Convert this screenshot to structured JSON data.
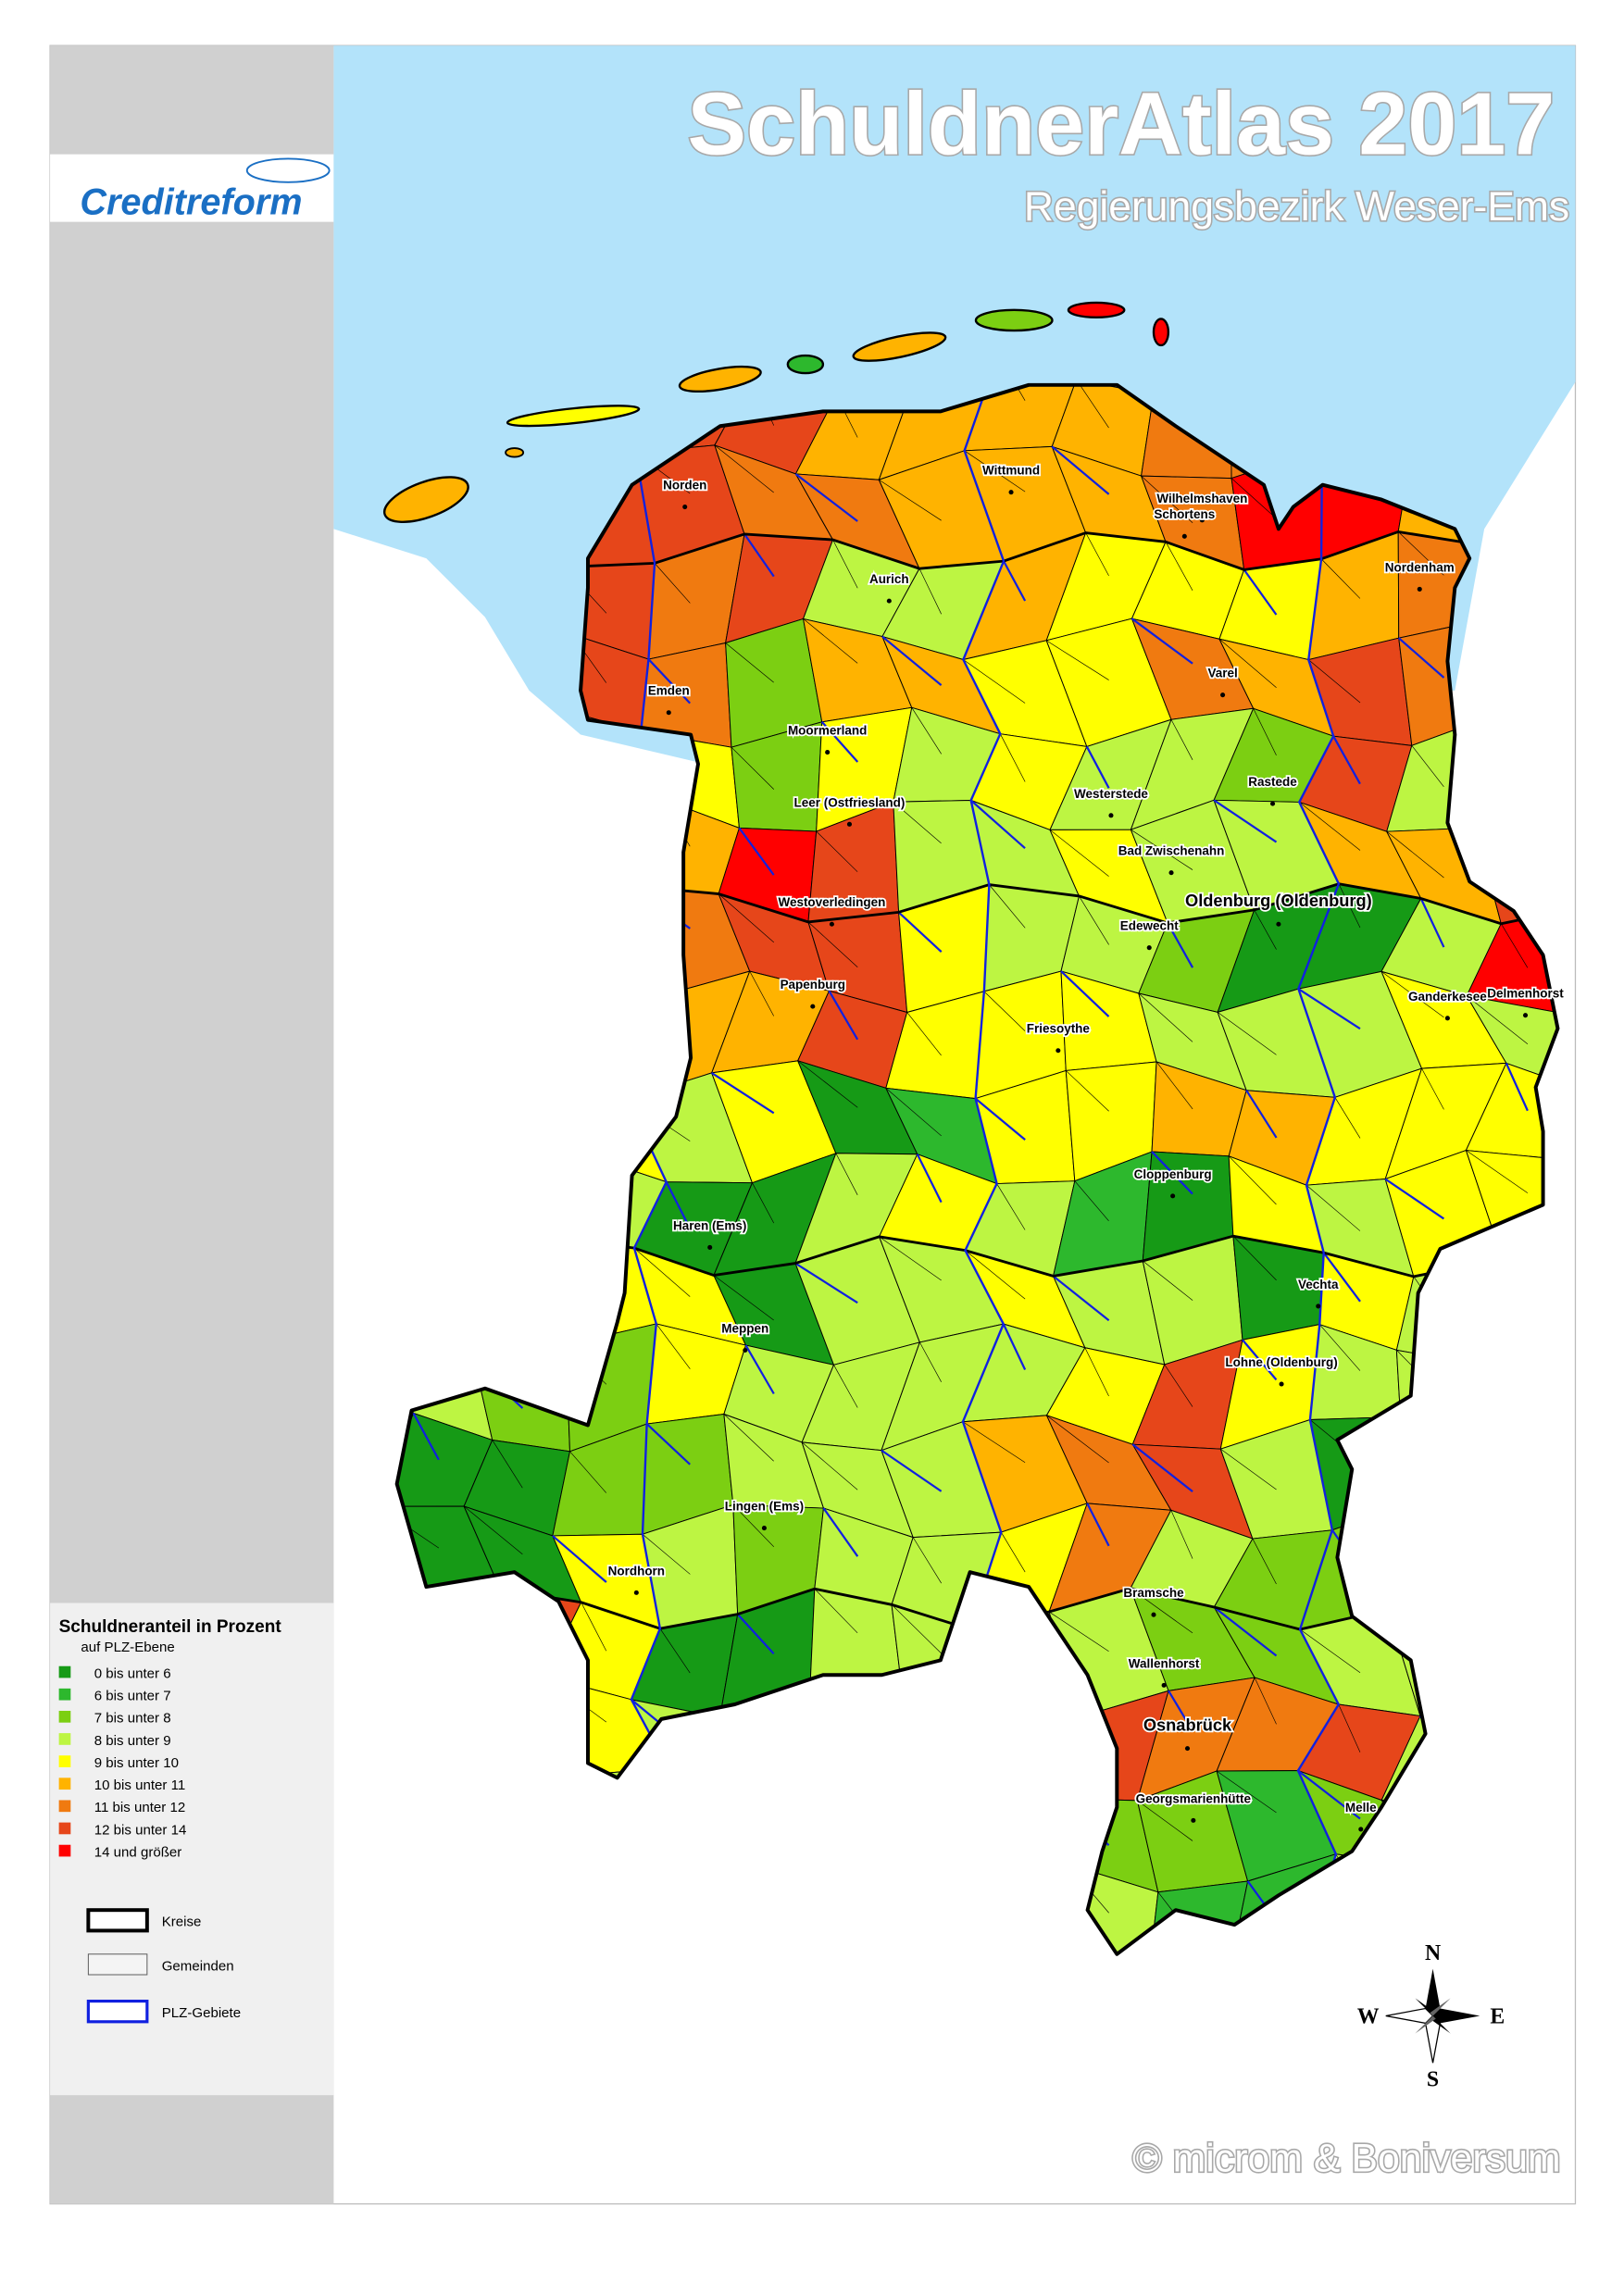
{
  "header": {
    "title": "SchuldnerAtlas 2017",
    "subtitle": "Regierungsbezirk Weser-Ems",
    "logo": "Creditreform"
  },
  "legend": {
    "title": "Schuldneranteil in Prozent",
    "subtitle": "auf PLZ-Ebene",
    "classes": [
      {
        "label": "0 bis unter 6",
        "color": "#169a16"
      },
      {
        "label": "6 bis unter 7",
        "color": "#2db82d"
      },
      {
        "label": "7 bis unter 8",
        "color": "#7ccf12"
      },
      {
        "label": "8 bis unter 9",
        "color": "#bdf542"
      },
      {
        "label": "9 bis unter 10",
        "color": "#ffff00"
      },
      {
        "label": "10 bis unter 11",
        "color": "#ffb300"
      },
      {
        "label": "11 bis unter 12",
        "color": "#f07a10"
      },
      {
        "label": "12 bis unter 14",
        "color": "#e6461a"
      },
      {
        "label": "14 und größer",
        "color": "#ff0000"
      }
    ],
    "boundaries": [
      {
        "label": "Kreise"
      },
      {
        "label": "Gemeinden"
      },
      {
        "label": "PLZ-Gebiete"
      }
    ]
  },
  "map": {
    "places": [
      "Norden",
      "Wittmund",
      "Wilhelmshaven",
      "Schortens",
      "Aurich",
      "Nordenham",
      "Emden",
      "Varel",
      "Moormerland",
      "Rastede",
      "Westerstede",
      "Leer (Ostfriesland)",
      "Bad Zwischenahn",
      "Oldenburg (Oldenburg)",
      "Westoverledingen",
      "Edewecht",
      "Papenburg",
      "Ganderkesee",
      "Delmenhorst",
      "Friesoythe",
      "Cloppenburg",
      "Haren (Ems)",
      "Vechta",
      "Meppen",
      "Lohne (Oldenburg)",
      "Lingen (Ems)",
      "Nordhorn",
      "Bramsche",
      "Wallenhorst",
      "Osnabrück",
      "Georgsmarienhütte",
      "Melle"
    ]
  },
  "compass": {
    "north": "N",
    "east": "E",
    "south": "S",
    "west": "W"
  },
  "copyright": "© microm & Boniversum"
}
